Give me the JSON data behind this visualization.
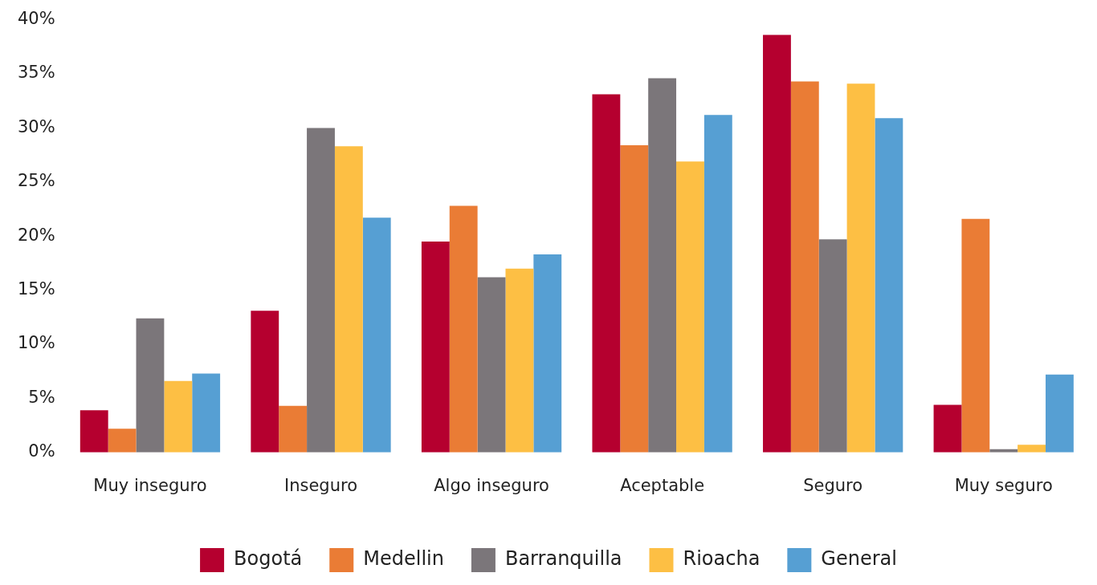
{
  "chart_data": {
    "type": "bar",
    "categories": [
      "Muy inseguro",
      "Inseguro",
      "Algo inseguro",
      "Aceptable",
      "Seguro",
      "Muy seguro"
    ],
    "series": [
      {
        "name": "Bogotá",
        "color": "#b5002f",
        "values": [
          3.9,
          13.1,
          19.5,
          33.1,
          38.6,
          4.4
        ]
      },
      {
        "name": "Medellin",
        "color": "#ea7c35",
        "values": [
          2.2,
          4.3,
          22.8,
          28.4,
          34.3,
          21.6
        ]
      },
      {
        "name": "Barranquilla",
        "color": "#7b767a",
        "values": [
          12.4,
          30.0,
          16.2,
          34.6,
          19.7,
          0.3
        ]
      },
      {
        "name": "Rioacha",
        "color": "#fdbf44",
        "values": [
          6.6,
          28.3,
          17.0,
          26.9,
          34.1,
          0.7
        ]
      },
      {
        "name": "General",
        "color": "#569fd3",
        "values": [
          7.3,
          21.7,
          18.3,
          31.2,
          30.9,
          7.2
        ]
      }
    ],
    "ylim": [
      0,
      40
    ],
    "yticks": [
      {
        "value": 0,
        "label": "0%"
      },
      {
        "value": 5,
        "label": "5%"
      },
      {
        "value": 10,
        "label": "10%"
      },
      {
        "value": 15,
        "label": "15%"
      },
      {
        "value": 20,
        "label": "20%"
      },
      {
        "value": 25,
        "label": "25%"
      },
      {
        "value": 30,
        "label": "30%"
      },
      {
        "value": 35,
        "label": "35%"
      },
      {
        "value": 40,
        "label": "40%"
      }
    ],
    "grid": false,
    "legend": "bottom"
  }
}
